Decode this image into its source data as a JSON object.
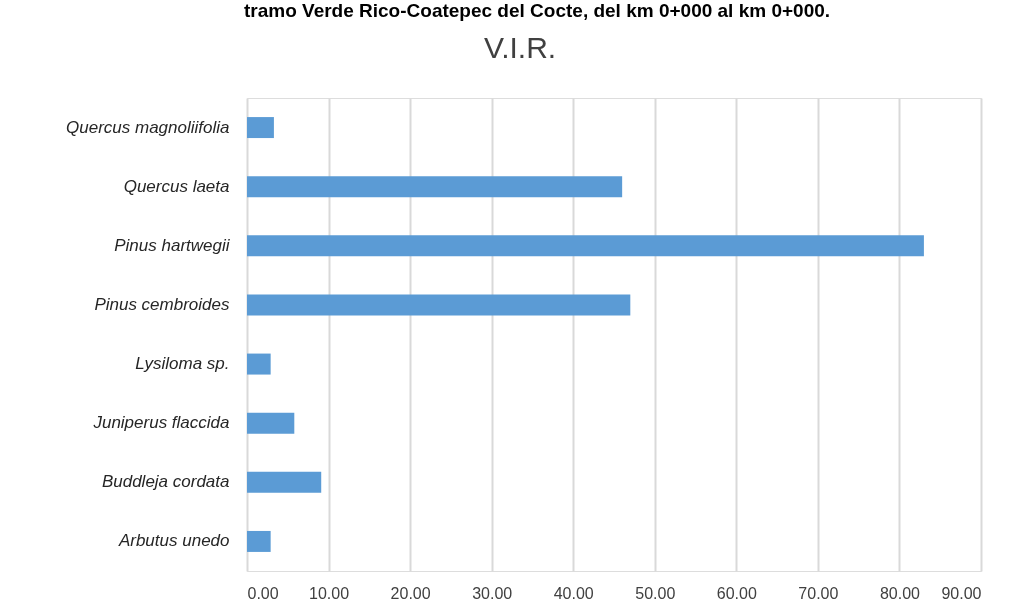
{
  "chart_data": {
    "type": "bar",
    "orientation": "horizontal",
    "title": "V.I.R.",
    "annotations": [
      "tramo Verde Rico-Coatepec del Cocte, del km 0+000 al km 0+000."
    ],
    "categories": [
      "Quercus magnoliifolia",
      "Quercus laeta",
      "Pinus hartwegii",
      "Pinus cembroides",
      "Lysiloma sp.",
      "Juniperus flaccida",
      "Buddleja cordata",
      "Arbutus unedo"
    ],
    "values": [
      3.3,
      46.0,
      83.0,
      47.0,
      2.9,
      5.8,
      9.1,
      2.9
    ],
    "color": "#5b9bd5",
    "xlim": [
      0,
      90
    ],
    "xticks": [
      {
        "value": 0,
        "label": "0.00"
      },
      {
        "value": 10,
        "label": "10.00"
      },
      {
        "value": 20,
        "label": "20.00"
      },
      {
        "value": 30,
        "label": "30.00"
      },
      {
        "value": 40,
        "label": "40.00"
      },
      {
        "value": 50,
        "label": "50.00"
      },
      {
        "value": 60,
        "label": "60.00"
      },
      {
        "value": 70,
        "label": "70.00"
      },
      {
        "value": 80,
        "label": "80.00"
      },
      {
        "value": 90,
        "label": "90.00"
      }
    ],
    "grid": "x"
  }
}
